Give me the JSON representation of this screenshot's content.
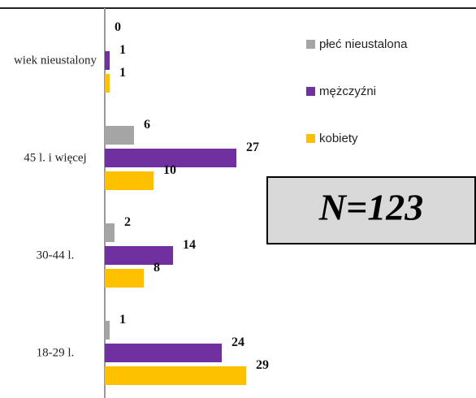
{
  "chart_data": {
    "type": "hbar",
    "annotation": "N=123",
    "categories": [
      "wiek nieustalony",
      "45 l. i więcej",
      "30-44 l.",
      "18-29 l."
    ],
    "series": [
      {
        "name": "płeć nieustalona",
        "color": "#a5a5a5",
        "values": [
          0,
          6,
          2,
          1
        ]
      },
      {
        "name": "mężczyźni",
        "color": "#7030a0",
        "values": [
          1,
          27,
          14,
          24
        ]
      },
      {
        "name": "kobiety",
        "color": "#ffc000",
        "values": [
          1,
          10,
          8,
          29
        ]
      }
    ],
    "xlim": [
      0,
      76
    ],
    "legend": "right"
  }
}
